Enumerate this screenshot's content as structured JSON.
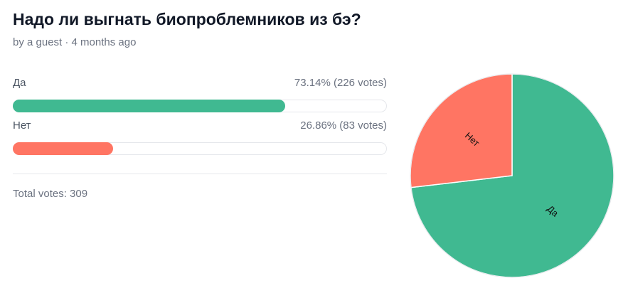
{
  "poll": {
    "title": "Надо ли выгнать биопроблемников из бэ?",
    "meta": "by a guest · 4 months ago",
    "options": [
      {
        "label": "Да",
        "result": "73.14% (226 votes)",
        "percent": 73.14,
        "votes": 226,
        "color": "#40b991"
      },
      {
        "label": "Нет",
        "result": "26.86% (83 votes)",
        "percent": 26.86,
        "votes": 83,
        "color": "#ff7563"
      }
    ],
    "total": "Total votes: 309"
  },
  "chart_data": {
    "type": "pie",
    "categories": [
      "Да",
      "Нет"
    ],
    "values": [
      226,
      83
    ],
    "colors": [
      "#40b991",
      "#ff7563"
    ]
  }
}
